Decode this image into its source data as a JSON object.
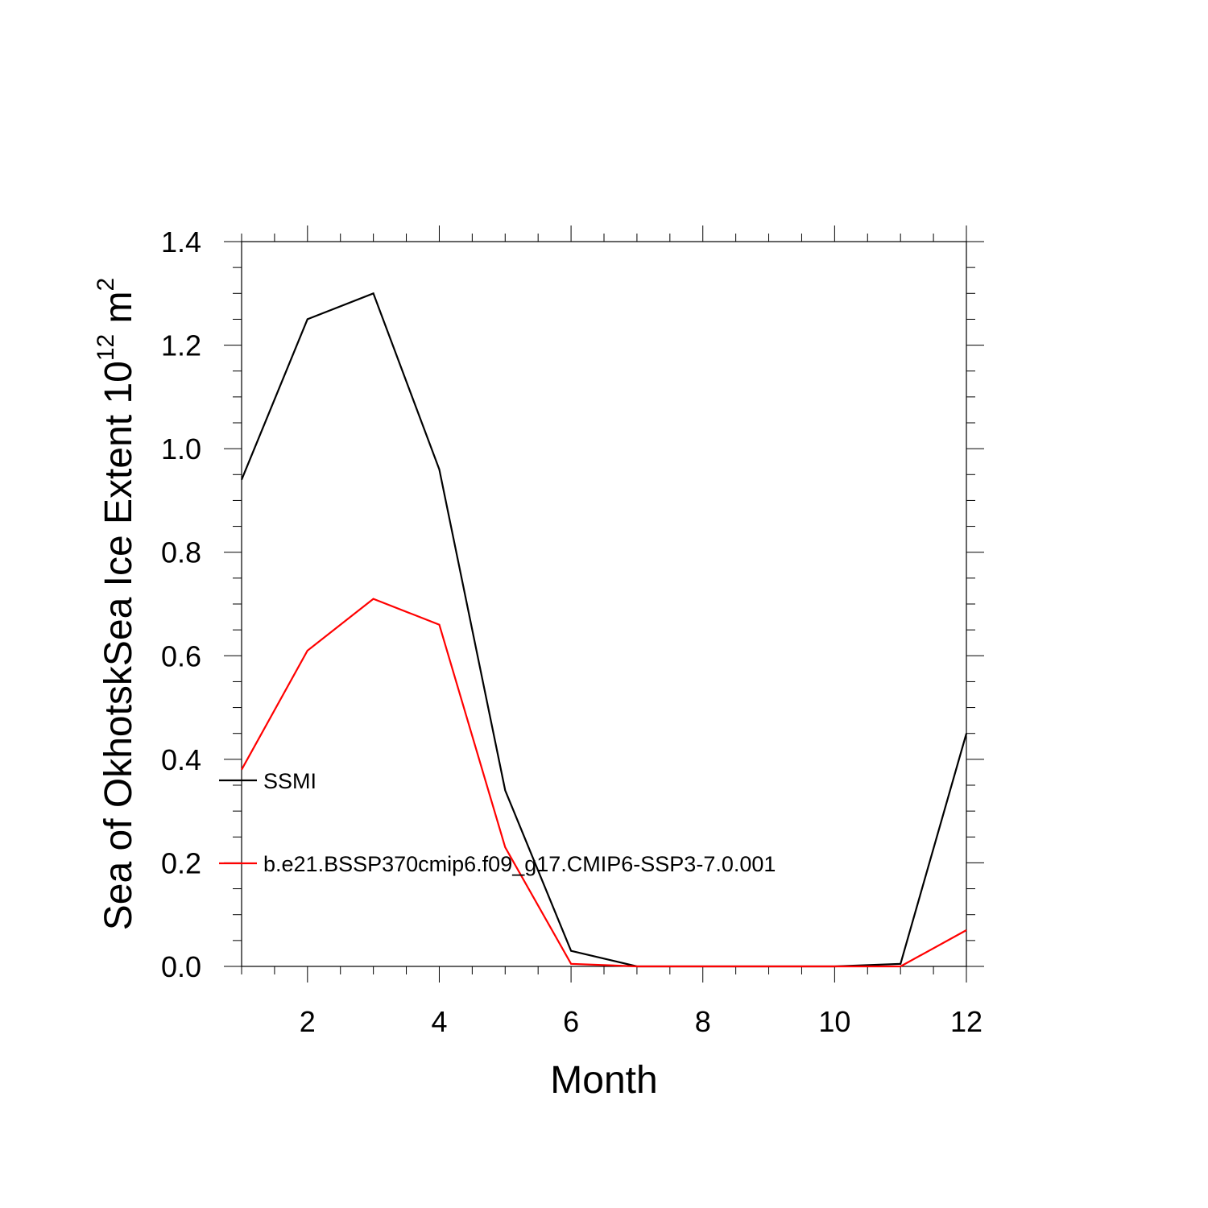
{
  "chart_data": {
    "type": "line",
    "title": "",
    "xlabel": "Month",
    "ylabel": {
      "base": "Sea of OkhotskSea Ice Extent 10",
      "exponent": "12",
      "unit": " m",
      "unit_exponent": "2"
    },
    "xlim": [
      1,
      12
    ],
    "ylim": [
      0,
      1.4
    ],
    "x_ticks": [
      2,
      4,
      6,
      8,
      10,
      12
    ],
    "x_tick_labels": [
      "2",
      "4",
      "6",
      "8",
      "10",
      "12"
    ],
    "y_ticks": [
      0.0,
      0.2,
      0.4,
      0.6,
      0.8,
      1.0,
      1.2,
      1.4
    ],
    "y_tick_labels": [
      "0.0",
      "0.2",
      "0.4",
      "0.6",
      "0.8",
      "1.0",
      "1.2",
      "1.4"
    ],
    "grid": false,
    "legend_position": "inside-left",
    "x": [
      1,
      2,
      3,
      4,
      5,
      6,
      7,
      8,
      9,
      10,
      11,
      12
    ],
    "series": [
      {
        "name": "SSMI",
        "color": "#000000",
        "values": [
          0.94,
          1.25,
          1.3,
          0.96,
          0.34,
          0.03,
          0.0,
          0.0,
          0.0,
          0.0,
          0.005,
          0.45
        ]
      },
      {
        "name": "b.e21.BSSP370cmip6.f09_g17.CMIP6-SSP3-7.0.001",
        "color": "#ff0000",
        "values": [
          0.38,
          0.61,
          0.71,
          0.66,
          0.23,
          0.005,
          0.0,
          0.0,
          0.0,
          0.0,
          0.0,
          0.07
        ]
      }
    ]
  }
}
